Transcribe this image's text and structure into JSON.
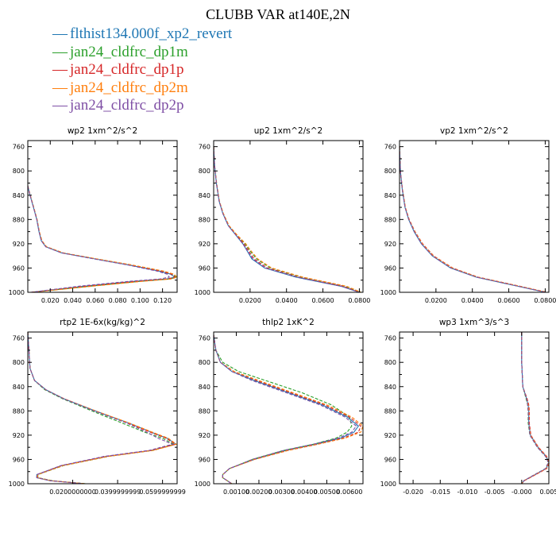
{
  "title": "CLUBB VAR at140E,2N",
  "legend": [
    {
      "label": "flthist134.000f_xp2_revert",
      "color": "#1f77b4"
    },
    {
      "label": "jan24_cldfrc_dp1m",
      "color": "#2ca02c"
    },
    {
      "label": "jan24_cldfrc_dp1p",
      "color": "#d62728"
    },
    {
      "label": "jan24_cldfrc_dp2m",
      "color": "#ff7f0e"
    },
    {
      "label": "jan24_cldfrc_dp2p",
      "color": "#7f4fa5"
    }
  ],
  "chart_data": [
    {
      "type": "line",
      "title": "wp2   1xm^2/s^2",
      "xlim": [
        0,
        0.133
      ],
      "ylim": [
        1000,
        750
      ],
      "xticks": [
        "0.020",
        "0.040",
        "0.060",
        "0.080",
        "0.100",
        "0.120"
      ],
      "xtick_values": [
        0.02,
        0.04,
        0.06,
        0.08,
        0.1,
        0.12
      ],
      "yticks": [
        "760",
        "800",
        "840",
        "880",
        "920",
        "960",
        "1000"
      ],
      "ytick_values": [
        760,
        800,
        840,
        880,
        920,
        960,
        1000
      ],
      "y": [
        825,
        840,
        860,
        880,
        900,
        915,
        925,
        935,
        945,
        955,
        965,
        970,
        975,
        978,
        982,
        990,
        1000
      ],
      "series": [
        {
          "values": [
            0,
            0.002,
            0.005,
            0.008,
            0.01,
            0.012,
            0.016,
            0.03,
            0.06,
            0.09,
            0.117,
            0.127,
            0.131,
            0.124,
            0.095,
            0.05,
            0.003
          ]
        },
        {
          "values": [
            0,
            0.0022,
            0.0052,
            0.0082,
            0.0102,
            0.0125,
            0.0165,
            0.031,
            0.061,
            0.092,
            0.12,
            0.129,
            0.132,
            0.127,
            0.1,
            0.055,
            0.004
          ]
        },
        {
          "values": [
            0,
            0.0021,
            0.0051,
            0.0081,
            0.0101,
            0.0123,
            0.0163,
            0.0305,
            0.0605,
            0.091,
            0.119,
            0.128,
            0.131,
            0.125,
            0.097,
            0.052,
            0.003
          ]
        },
        {
          "values": [
            0,
            0.0022,
            0.0053,
            0.0083,
            0.0103,
            0.0126,
            0.0168,
            0.0315,
            0.0615,
            0.093,
            0.121,
            0.13,
            0.133,
            0.128,
            0.102,
            0.057,
            0.004
          ]
        },
        {
          "values": [
            0,
            0.002,
            0.005,
            0.008,
            0.01,
            0.012,
            0.016,
            0.0298,
            0.059,
            0.089,
            0.115,
            0.124,
            0.126,
            0.118,
            0.09,
            0.045,
            0.003
          ]
        }
      ]
    },
    {
      "type": "line",
      "title": "up2   1xm^2/s^2",
      "xlim": [
        0,
        0.082
      ],
      "ylim": [
        1000,
        750
      ],
      "xticks": [
        "0.0200",
        "0.0400",
        "0.0600",
        "0.0800"
      ],
      "xtick_values": [
        0.02,
        0.04,
        0.06,
        0.08
      ],
      "yticks": [
        "760",
        "800",
        "840",
        "880",
        "920",
        "960",
        "1000"
      ],
      "ytick_values": [
        760,
        800,
        840,
        880,
        920,
        960,
        1000
      ],
      "y": [
        760,
        790,
        820,
        850,
        870,
        890,
        905,
        920,
        930,
        945,
        960,
        975,
        990,
        1000
      ],
      "series": [
        {
          "values": [
            0,
            0.0005,
            0.0015,
            0.003,
            0.005,
            0.008,
            0.012,
            0.016,
            0.018,
            0.021,
            0.028,
            0.045,
            0.07,
            0.08
          ]
        },
        {
          "values": [
            0,
            0.0005,
            0.0016,
            0.0031,
            0.0052,
            0.0083,
            0.0125,
            0.0172,
            0.0195,
            0.0235,
            0.031,
            0.048,
            0.072,
            0.081
          ]
        },
        {
          "values": [
            0,
            0.0005,
            0.0015,
            0.0031,
            0.0051,
            0.0082,
            0.0122,
            0.0165,
            0.0188,
            0.0222,
            0.0295,
            0.0465,
            0.071,
            0.08
          ]
        },
        {
          "values": [
            0,
            0.0005,
            0.0016,
            0.0032,
            0.0053,
            0.0084,
            0.0127,
            0.0176,
            0.02,
            0.0242,
            0.0318,
            0.049,
            0.073,
            0.081
          ]
        },
        {
          "values": [
            0,
            0.0005,
            0.0015,
            0.003,
            0.005,
            0.008,
            0.012,
            0.016,
            0.0182,
            0.0215,
            0.0285,
            0.046,
            0.07,
            0.08
          ]
        }
      ]
    },
    {
      "type": "line",
      "title": "vp2   1xm^2/s^2",
      "xlim": [
        0,
        0.082
      ],
      "ylim": [
        1000,
        750
      ],
      "xticks": [
        "0.0200",
        "0.0400",
        "0.0600",
        "0.0800"
      ],
      "xtick_values": [
        0.02,
        0.04,
        0.06,
        0.08
      ],
      "yticks": [
        "760",
        "800",
        "840",
        "880",
        "920",
        "960",
        "1000"
      ],
      "ytick_values": [
        760,
        800,
        840,
        880,
        920,
        960,
        1000
      ],
      "y": [
        760,
        800,
        830,
        860,
        880,
        900,
        920,
        940,
        960,
        975,
        990,
        1000
      ],
      "series": [
        {
          "values": [
            0,
            0.0005,
            0.0015,
            0.003,
            0.005,
            0.008,
            0.012,
            0.018,
            0.028,
            0.042,
            0.065,
            0.08
          ]
        },
        {
          "values": [
            0,
            0.0005,
            0.0015,
            0.0031,
            0.0051,
            0.0082,
            0.0123,
            0.0183,
            0.0285,
            0.0425,
            0.0655,
            0.0805
          ]
        },
        {
          "values": [
            0,
            0.0005,
            0.0016,
            0.0032,
            0.0053,
            0.0085,
            0.0127,
            0.0188,
            0.0292,
            0.0432,
            0.0662,
            0.081
          ]
        },
        {
          "values": [
            0,
            0.0005,
            0.0016,
            0.0032,
            0.0052,
            0.0084,
            0.0125,
            0.0186,
            0.029,
            0.043,
            0.066,
            0.081
          ]
        },
        {
          "values": [
            0,
            0.0005,
            0.0015,
            0.003,
            0.005,
            0.0081,
            0.0121,
            0.0181,
            0.0282,
            0.0422,
            0.0652,
            0.0802
          ]
        }
      ]
    },
    {
      "type": "line",
      "title": "rtp2   1E-6x(kg/kg)^2",
      "xlim": [
        0,
        0.0665
      ],
      "ylim": [
        1000,
        750
      ],
      "xticks": [
        "0.0200000000",
        "0.0399999999",
        "0.0599999999"
      ],
      "xtick_values": [
        0.02,
        0.04,
        0.06
      ],
      "yticks": [
        "760",
        "800",
        "840",
        "880",
        "920",
        "960",
        "1000"
      ],
      "ytick_values": [
        760,
        800,
        840,
        880,
        920,
        960,
        1000
      ],
      "y": [
        750,
        780,
        810,
        830,
        845,
        860,
        880,
        900,
        915,
        925,
        935,
        945,
        955,
        970,
        985,
        990,
        995,
        1000
      ],
      "series": [
        {
          "values": [
            0,
            0.0005,
            0.001,
            0.003,
            0.008,
            0.016,
            0.03,
            0.045,
            0.055,
            0.062,
            0.066,
            0.055,
            0.035,
            0.015,
            0.004,
            0.004,
            0.01,
            0.025
          ]
        },
        {
          "values": [
            0,
            0.0005,
            0.001,
            0.003,
            0.0075,
            0.0155,
            0.0285,
            0.042,
            0.052,
            0.06,
            0.065,
            0.056,
            0.036,
            0.016,
            0.0045,
            0.0045,
            0.011,
            0.026
          ]
        },
        {
          "values": [
            0,
            0.0005,
            0.001,
            0.003,
            0.008,
            0.016,
            0.0298,
            0.0445,
            0.0545,
            0.0615,
            0.0658,
            0.0552,
            0.0352,
            0.0152,
            0.0042,
            0.0042,
            0.0102,
            0.0252
          ]
        },
        {
          "values": [
            0,
            0.0005,
            0.001,
            0.003,
            0.008,
            0.0162,
            0.0302,
            0.0452,
            0.0555,
            0.0625,
            0.0662,
            0.0558,
            0.0358,
            0.0158,
            0.0044,
            0.0044,
            0.0104,
            0.0254
          ]
        },
        {
          "values": [
            0,
            0.0005,
            0.001,
            0.003,
            0.008,
            0.016,
            0.0295,
            0.044,
            0.053,
            0.058,
            0.0645,
            0.054,
            0.034,
            0.0148,
            0.004,
            0.004,
            0.0098,
            0.0248
          ]
        }
      ]
    },
    {
      "type": "line",
      "title": "thlp2   1xK^2",
      "xlim": [
        0,
        0.0066
      ],
      "ylim": [
        1000,
        750
      ],
      "xticks": [
        "0.00100",
        "0.00200",
        "0.00300",
        "0.00400",
        "0.00500",
        "0.00600"
      ],
      "xtick_values": [
        0.001,
        0.002,
        0.003,
        0.004,
        0.005,
        0.006
      ],
      "yticks": [
        "760",
        "800",
        "840",
        "880",
        "920",
        "960",
        "1000"
      ],
      "ytick_values": [
        760,
        800,
        840,
        880,
        920,
        960,
        1000
      ],
      "y": [
        755,
        780,
        800,
        815,
        830,
        850,
        870,
        890,
        905,
        915,
        925,
        935,
        945,
        960,
        975,
        985,
        990,
        995,
        1000
      ],
      "series": [
        {
          "values": [
            0,
            0.0001,
            0.0003,
            0.0008,
            0.0018,
            0.0033,
            0.0048,
            0.0059,
            0.0064,
            0.0062,
            0.0056,
            0.0045,
            0.0032,
            0.0018,
            0.0007,
            0.0004,
            0.0004,
            0.0006,
            0.0008
          ]
        },
        {
          "values": [
            0,
            0.0001,
            0.0004,
            0.0011,
            0.0023,
            0.0039,
            0.0052,
            0.006,
            0.0061,
            0.0059,
            0.0054,
            0.0044,
            0.0031,
            0.0017,
            0.0007,
            0.0004,
            0.0004,
            0.0006,
            0.0008
          ]
        },
        {
          "values": [
            0,
            0.0001,
            0.0003,
            0.0009,
            0.0019,
            0.0034,
            0.0049,
            0.006,
            0.0065,
            0.0064,
            0.0057,
            0.0046,
            0.0033,
            0.0018,
            0.0007,
            0.0004,
            0.0004,
            0.0006,
            0.0008
          ]
        },
        {
          "values": [
            0,
            0.0001,
            0.0003,
            0.0009,
            0.002,
            0.0035,
            0.005,
            0.0061,
            0.0066,
            0.0065,
            0.0058,
            0.0046,
            0.0033,
            0.0018,
            0.0007,
            0.0004,
            0.0004,
            0.0006,
            0.0008
          ]
        },
        {
          "values": [
            0,
            0.0001,
            0.0003,
            0.0008,
            0.0017,
            0.0032,
            0.0047,
            0.0058,
            0.0063,
            0.0061,
            0.0055,
            0.0044,
            0.0031,
            0.0017,
            0.0007,
            0.0004,
            0.0004,
            0.0006,
            0.0008
          ]
        }
      ]
    },
    {
      "type": "line",
      "title": "wp3   1xm^3/s^3",
      "xlim": [
        -0.0225,
        0.005
      ],
      "ylim": [
        1000,
        750
      ],
      "xticks": [
        "-0.020",
        "-0.015",
        "-0.010",
        "-0.005",
        "-0.000",
        "0.005"
      ],
      "xtick_values": [
        -0.02,
        -0.015,
        -0.01,
        -0.005,
        0,
        0.005
      ],
      "yticks": [
        "760",
        "800",
        "840",
        "880",
        "920",
        "960",
        "1000"
      ],
      "ytick_values": [
        760,
        800,
        840,
        880,
        920,
        960,
        1000
      ],
      "y": [
        750,
        800,
        840,
        860,
        870,
        880,
        900,
        920,
        940,
        955,
        965,
        975,
        985,
        995,
        1000
      ],
      "series": [
        {
          "values": [
            0,
            0,
            0.0002,
            0.0009,
            0.0012,
            0.0013,
            0.0013,
            0.0016,
            0.003,
            0.0045,
            0.005,
            0.0045,
            0.0025,
            0.0004,
            0
          ]
        },
        {
          "values": [
            0,
            0,
            0.0002,
            0.0008,
            0.0011,
            0.0012,
            0.0012,
            0.0015,
            0.0029,
            0.0044,
            0.0049,
            0.0044,
            0.0024,
            0.0004,
            0
          ]
        },
        {
          "values": [
            0,
            0,
            0.0002,
            0.001,
            0.0013,
            0.0014,
            0.0014,
            0.0017,
            0.0031,
            0.0046,
            0.0051,
            0.0046,
            0.0026,
            0.0005,
            0
          ]
        },
        {
          "values": [
            0,
            0,
            0.0002,
            0.0009,
            0.0012,
            0.0013,
            0.0013,
            0.0016,
            0.003,
            0.0045,
            0.005,
            0.0045,
            0.0025,
            0.0004,
            0
          ]
        },
        {
          "values": [
            0,
            0,
            0.0002,
            0.0009,
            0.0011,
            0.0012,
            0.0013,
            0.0015,
            0.0029,
            0.0044,
            0.0049,
            0.0044,
            0.0024,
            0.0004,
            0
          ]
        }
      ]
    }
  ]
}
